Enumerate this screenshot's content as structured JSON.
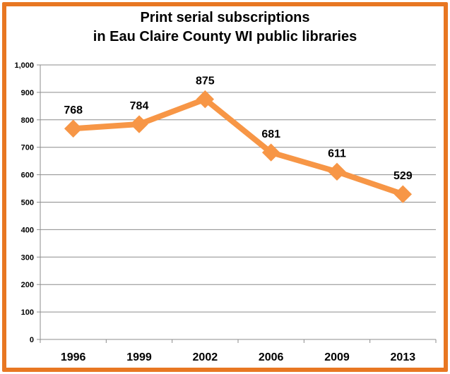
{
  "chart_data": {
    "type": "line",
    "title_line1": "Print serial subscriptions",
    "title_line2": "in Eau Claire County WI public libraries",
    "categories": [
      "1996",
      "1999",
      "2002",
      "2006",
      "2009",
      "2013"
    ],
    "values": [
      768,
      784,
      875,
      681,
      611,
      529
    ],
    "value_labels": [
      "768",
      "784",
      "875",
      "681",
      "611",
      "529"
    ],
    "ylim": [
      0,
      1000
    ],
    "yticks": [
      0,
      100,
      200,
      300,
      400,
      500,
      600,
      700,
      800,
      900,
      1000
    ],
    "ytick_labels": [
      "0",
      "100",
      "200",
      "300",
      "400",
      "500",
      "600",
      "700",
      "800",
      "900",
      "1,000"
    ],
    "grid": true,
    "xlabel": "",
    "ylabel": "",
    "line_color": "#F79646",
    "border_color": "#E87722"
  }
}
